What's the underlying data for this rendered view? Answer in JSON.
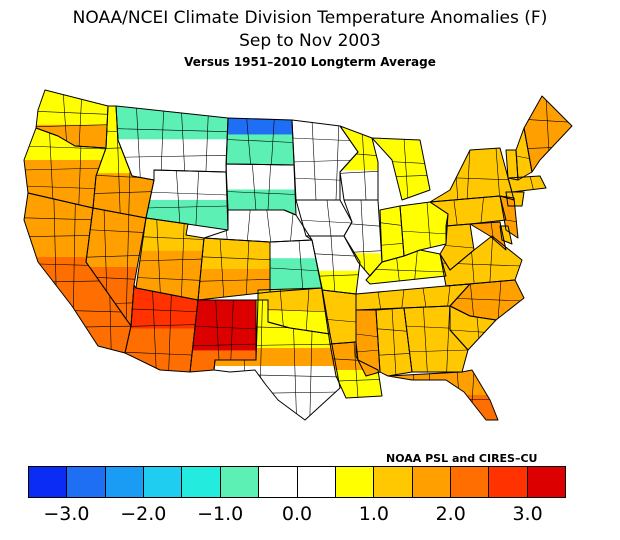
{
  "title": {
    "line1": "NOAA/NCEI Climate Division Temperature Anomalies (F)",
    "line2": "Sep to Nov 2003",
    "line3": "Versus 1951–2010 Longterm Average"
  },
  "credit": "NOAA PSL and CIRES–CU",
  "legend": {
    "colors": [
      "#0a2cf5",
      "#1f6ff5",
      "#1a9cf5",
      "#1ecdf0",
      "#23ecdf",
      "#5cf0b4",
      "#ffffff",
      "#ffffff",
      "#ffff00",
      "#ffc800",
      "#ffa000",
      "#ff6e00",
      "#ff3200",
      "#dd0000"
    ],
    "ticks": [
      "−3.0",
      "−2.0",
      "−1.0",
      "0.0",
      "1.0",
      "2.0",
      "3.0"
    ]
  },
  "map": {
    "states": [
      "WA",
      "OR",
      "CA",
      "NV",
      "ID",
      "MT",
      "WY",
      "UT",
      "AZ",
      "CO",
      "NM",
      "ND",
      "SD",
      "NE",
      "KS",
      "OK",
      "TX",
      "MN",
      "IA",
      "MO",
      "AR",
      "LA",
      "WI",
      "IL",
      "MI",
      "IN",
      "KY",
      "TN",
      "MS",
      "AL",
      "OH",
      "WV",
      "VA",
      "NC",
      "SC",
      "GA",
      "FL",
      "PA",
      "NY",
      "VT",
      "NH",
      "ME",
      "MA",
      "CT",
      "NJ",
      "DE",
      "MD"
    ],
    "palette": {
      "white": "#ffffff",
      "mint": "#5cf0b4",
      "cyan": "#23ecdf",
      "blue": "#1f6ff5",
      "yellow": "#ffff00",
      "amber": "#ffc800",
      "orange": "#ffa000",
      "darkorange": "#ff6e00",
      "red": "#ff3200",
      "darkred": "#dd0000"
    }
  }
}
